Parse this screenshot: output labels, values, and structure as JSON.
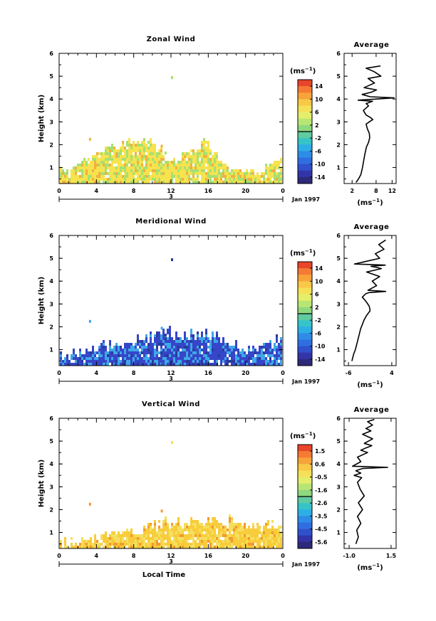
{
  "chart_data": [
    {
      "type": "heatmap",
      "title": "Zonal Wind",
      "ylabel": "Height (km)",
      "xlabel": "",
      "x_ticks": [
        "0",
        "4",
        "8",
        "12",
        "16",
        "20",
        "0"
      ],
      "y_ticks": [
        "1",
        "2",
        "3",
        "4",
        "5",
        "6"
      ],
      "xlim": [
        0,
        24
      ],
      "ylim": [
        0.3,
        6
      ],
      "day_label": "3",
      "date_label": "Jan 1997",
      "colorbar": {
        "unit": "(ms",
        "exp": "−1",
        "ticks": [
          "14",
          "10",
          "6",
          "2",
          "-2",
          "-6",
          "-10",
          "-14"
        ],
        "range": [
          -16,
          16
        ]
      },
      "top_profile": [
        0.9,
        1.1,
        1.3,
        1.5,
        1.7,
        1.9,
        2.0,
        2.2,
        2.3,
        2.2,
        1.9,
        1.5,
        1.4,
        1.6,
        2.0,
        2.4,
        1.8,
        1.3,
        1.0,
        0.9,
        0.8,
        0.9,
        1.1,
        1.3
      ],
      "colors": {
        "base": "#f6e34e",
        "alt": "#a6e070",
        "accent": "#f0b040"
      },
      "average": {
        "title": "Average",
        "xlabel": "(ms",
        "exp": "−1",
        "x_ticks": [
          "2",
          "8",
          "12"
        ],
        "x_tick_values": [
          2,
          8,
          12
        ],
        "xlim": [
          0,
          13
        ],
        "y_ticks": [
          "1",
          "2",
          "3",
          "4",
          "5",
          "6"
        ],
        "ylim": [
          0.3,
          6
        ],
        "x": [
          3.0,
          3.6,
          4.2,
          4.6,
          4.9,
          5.2,
          5.6,
          6.1,
          6.4,
          6.3,
          5.8,
          5.5,
          6.3,
          7.2,
          6.5,
          5.5,
          4.8,
          6.1,
          5.5,
          7.1,
          3.5,
          8.2,
          12.5,
          6.5,
          4.5,
          6.8,
          8.1,
          5.0,
          7.6,
          6.0,
          9.2,
          7.5,
          5.5,
          9.1
        ],
        "y": [
          0.35,
          0.5,
          0.7,
          1.0,
          1.3,
          1.6,
          1.9,
          2.1,
          2.3,
          2.5,
          2.7,
          2.9,
          3.0,
          3.1,
          3.2,
          3.3,
          3.5,
          3.7,
          3.8,
          3.9,
          3.95,
          4.0,
          4.05,
          4.1,
          4.2,
          4.3,
          4.4,
          4.5,
          4.7,
          4.9,
          5.0,
          5.2,
          5.35,
          5.45
        ]
      }
    },
    {
      "type": "heatmap",
      "title": "Meridional Wind",
      "ylabel": "Height (km)",
      "xlabel": "",
      "x_ticks": [
        "0",
        "4",
        "8",
        "12",
        "16",
        "20",
        "0"
      ],
      "y_ticks": [
        "1",
        "2",
        "3",
        "4",
        "5",
        "6"
      ],
      "xlim": [
        0,
        24
      ],
      "ylim": [
        0.3,
        6
      ],
      "day_label": "3",
      "date_label": "Jan 1997",
      "colorbar": {
        "unit": "(ms",
        "exp": "−1",
        "ticks": [
          "14",
          "10",
          "6",
          "2",
          "-2",
          "-6",
          "-10",
          "-14"
        ],
        "range": [
          -16,
          16
        ]
      },
      "top_profile": [
        0.8,
        0.9,
        1.0,
        1.1,
        1.2,
        1.3,
        1.3,
        1.4,
        1.5,
        1.6,
        1.8,
        1.9,
        1.7,
        1.6,
        1.7,
        1.8,
        1.7,
        1.4,
        1.3,
        1.2,
        1.1,
        1.2,
        1.3,
        1.5
      ],
      "colors": {
        "base": "#3646c8",
        "alt": "#3ea8e8",
        "accent": "#2a3a9a"
      },
      "average": {
        "title": "Average",
        "xlabel": "(ms",
        "exp": "−1",
        "x_ticks": [
          "-6",
          "4"
        ],
        "x_tick_values": [
          -6,
          4
        ],
        "xlim": [
          -7,
          5
        ],
        "y_ticks": [
          "1",
          "2",
          "3",
          "4",
          "5",
          "6"
        ],
        "ylim": [
          0.3,
          6
        ],
        "x": [
          -5.2,
          -4.8,
          -4.4,
          -4.0,
          -3.6,
          -3.2,
          -2.8,
          -2.4,
          -1.8,
          -1.0,
          -1.2,
          -1.9,
          -2.8,
          -2.0,
          -1.2,
          2.6,
          -1.5,
          0.5,
          -0.5,
          1.2,
          -1.8,
          1.6,
          0.5,
          -0.8,
          2.5,
          -4.6,
          1.2,
          0.2,
          2.2,
          1.0,
          2.6
        ],
        "y": [
          0.5,
          0.8,
          1.0,
          1.3,
          1.6,
          1.9,
          2.1,
          2.3,
          2.5,
          2.7,
          2.9,
          3.1,
          3.3,
          3.45,
          3.5,
          3.55,
          3.6,
          3.8,
          4.0,
          4.2,
          4.4,
          4.55,
          4.6,
          4.65,
          4.7,
          4.75,
          5.0,
          5.2,
          5.4,
          5.6,
          5.8
        ]
      }
    },
    {
      "type": "heatmap",
      "title": "Vertical Wind",
      "ylabel": "Height (km)",
      "xlabel": "Local Time",
      "x_ticks": [
        "0",
        "4",
        "8",
        "12",
        "16",
        "20",
        "0"
      ],
      "y_ticks": [
        "1",
        "2",
        "3",
        "4",
        "5",
        "6"
      ],
      "xlim": [
        0,
        24
      ],
      "ylim": [
        0.3,
        6
      ],
      "day_label": "3",
      "date_label": "Jan 1997",
      "colorbar": {
        "unit": "(ms",
        "exp": "−1",
        "ticks": [
          "1.5",
          "0.6",
          "-0.5",
          "-1.6",
          "-2.6",
          "-3.5",
          "-4.5",
          "-5.6"
        ],
        "range": [
          -6.0,
          2.0
        ]
      },
      "top_profile": [
        0.6,
        0.7,
        0.8,
        0.8,
        0.9,
        1.0,
        1.0,
        1.1,
        1.2,
        1.3,
        1.4,
        1.5,
        1.5,
        1.5,
        1.6,
        1.6,
        1.5,
        1.5,
        1.6,
        1.5,
        1.4,
        1.3,
        1.4,
        1.3
      ],
      "colors": {
        "base": "#f8cc3a",
        "alt": "#f4e060",
        "accent": "#f29a30"
      },
      "average": {
        "title": "Average",
        "xlabel": "(ms",
        "exp": "−1",
        "x_ticks": [
          "-1.0",
          "1.5"
        ],
        "x_tick_values": [
          -1.0,
          1.5
        ],
        "xlim": [
          -1.3,
          1.8
        ],
        "y_ticks": [
          "1",
          "2",
          "3",
          "4",
          "5",
          "6"
        ],
        "ylim": [
          0.3,
          6
        ],
        "x": [
          -0.6,
          -0.45,
          -0.55,
          -0.3,
          -0.5,
          -0.2,
          -0.45,
          -0.1,
          -0.35,
          -0.5,
          -0.25,
          -0.7,
          -0.3,
          -0.6,
          -0.2,
          1.3,
          -0.8,
          -0.3,
          -0.5,
          0.1,
          -0.3,
          0.0,
          0.35,
          -0.1,
          0.4,
          -0.2,
          0.3,
          0.0,
          0.4,
          0.1,
          0.5
        ],
        "y": [
          0.5,
          0.8,
          1.1,
          1.4,
          1.7,
          2.0,
          2.3,
          2.6,
          2.9,
          3.2,
          3.4,
          3.5,
          3.6,
          3.7,
          3.8,
          3.85,
          3.9,
          4.1,
          4.3,
          4.5,
          4.6,
          4.7,
          4.8,
          4.9,
          5.1,
          5.3,
          5.45,
          5.55,
          5.7,
          5.85,
          5.95
        ]
      }
    }
  ]
}
